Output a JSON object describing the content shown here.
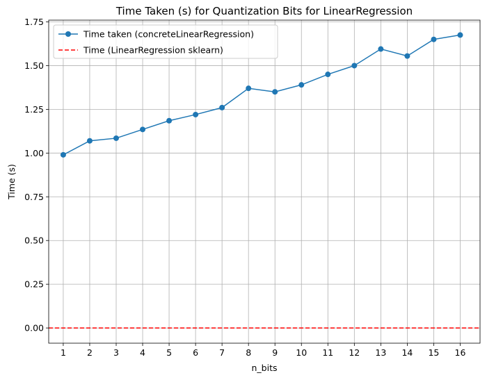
{
  "chart_data": {
    "type": "line",
    "title": "Time Taken (s) for Quantization Bits for LinearRegression",
    "xlabel": "n_bits",
    "ylabel": "Time (s)",
    "x": [
      1,
      2,
      3,
      4,
      5,
      6,
      7,
      8,
      9,
      10,
      11,
      12,
      13,
      14,
      15,
      16
    ],
    "xlim": [
      0.45,
      16.75
    ],
    "ylim": [
      -0.087,
      1.76
    ],
    "yticks": [
      0.0,
      0.25,
      0.5,
      0.75,
      1.0,
      1.25,
      1.5,
      1.75
    ],
    "ytick_labels": [
      "0.00",
      "0.25",
      "0.50",
      "0.75",
      "1.00",
      "1.25",
      "1.50",
      "1.75"
    ],
    "xtick_labels": [
      "1",
      "2",
      "3",
      "4",
      "5",
      "6",
      "7",
      "8",
      "9",
      "10",
      "11",
      "12",
      "13",
      "14",
      "15",
      "16"
    ],
    "grid": true,
    "legend_position": "top-left",
    "series": [
      {
        "name": "Time taken (concreteLinearRegression)",
        "style": "solid-line-with-circle-markers",
        "color": "#1f77b4",
        "values": [
          0.99,
          1.07,
          1.085,
          1.135,
          1.185,
          1.22,
          1.26,
          1.37,
          1.35,
          1.39,
          1.45,
          1.5,
          1.595,
          1.555,
          1.65,
          1.675
        ]
      },
      {
        "name": "Time (LinearRegression sklearn)",
        "style": "dashed-horizontal-line",
        "color": "#ff0000",
        "value": 0.0
      }
    ]
  }
}
